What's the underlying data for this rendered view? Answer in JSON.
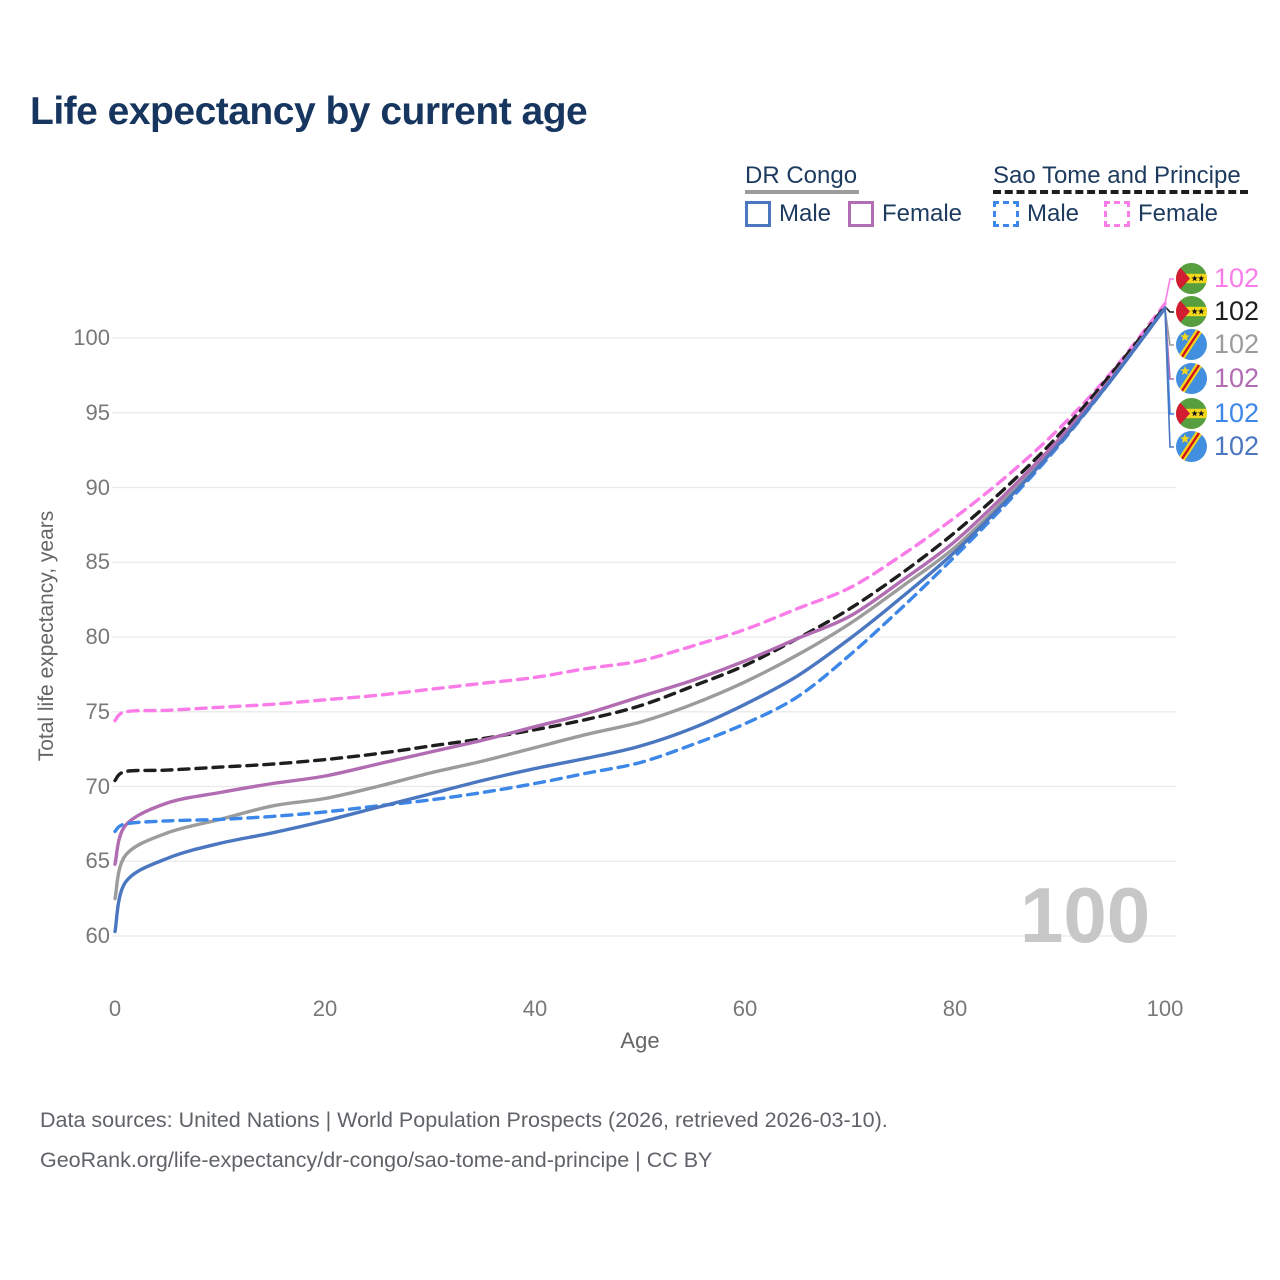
{
  "title": "Life expectancy by current age",
  "watermark": "100",
  "colors": {
    "title_text": "#17365f",
    "legend_text": "#1d3a5f",
    "axis_text": "#787878",
    "grid": "#e9e9e9",
    "watermark": "#c7c7c7",
    "footer_text": "#5f6368"
  },
  "legend": {
    "groups": [
      {
        "label": "DR Congo",
        "underline_color": "#9c9c9c",
        "underline_style": "solid",
        "items": [
          {
            "label": "Male",
            "color": "#4a77c0",
            "style": "solid"
          },
          {
            "label": "Female",
            "color": "#b16cb2",
            "style": "solid"
          }
        ]
      },
      {
        "label": "Sao Tome and Principe",
        "underline_color": "#1e1e1e",
        "underline_style": "dashed",
        "items": [
          {
            "label": "Male",
            "color": "#3c87e8",
            "style": "dashed"
          },
          {
            "label": "Female",
            "color": "#f97ce8",
            "style": "dashed"
          }
        ]
      }
    ]
  },
  "chart_data": {
    "type": "line",
    "title": "Life expectancy by current age",
    "xlabel": "Age",
    "ylabel": "Total life expectancy, years",
    "xlim": [
      0,
      100
    ],
    "ylim": [
      60,
      102.5
    ],
    "x_ticks": [
      0,
      20,
      40,
      60,
      80,
      100
    ],
    "y_ticks": [
      60,
      65,
      70,
      75,
      80,
      85,
      90,
      95,
      100
    ],
    "grid": "horizontal",
    "legend_position": "top-right",
    "x": [
      0,
      1,
      5,
      10,
      15,
      20,
      25,
      30,
      35,
      40,
      45,
      50,
      55,
      60,
      65,
      70,
      75,
      80,
      85,
      90,
      95,
      100
    ],
    "series": [
      {
        "name": "Sao Tome and Principe — Female",
        "country": "Sao Tome and Principe",
        "sex": "Female",
        "color": "#f97ce8",
        "line_style": "dashed",
        "flag": "sao-tome-and-principe",
        "end_label": "102",
        "values": [
          74.4,
          75.0,
          75.1,
          75.3,
          75.5,
          75.8,
          76.1,
          76.5,
          76.9,
          77.3,
          77.9,
          78.4,
          79.4,
          80.5,
          81.9,
          83.3,
          85.5,
          88.0,
          90.8,
          94.0,
          97.8,
          102.3
        ]
      },
      {
        "name": "Sao Tome and Principe — Both sexes",
        "country": "Sao Tome and Principe",
        "sex": "Both",
        "color": "#1e1e1e",
        "line_style": "dashed",
        "flag": "sao-tome-and-principe",
        "end_label": "102",
        "values": [
          70.4,
          71.0,
          71.1,
          71.3,
          71.5,
          71.8,
          72.2,
          72.7,
          73.2,
          73.8,
          74.5,
          75.4,
          76.7,
          78.1,
          79.9,
          81.9,
          84.3,
          87.0,
          90.1,
          93.6,
          97.7,
          102.1
        ]
      },
      {
        "name": "DR Congo — Both sexes",
        "country": "DR Congo",
        "sex": "Both",
        "color": "#9c9c9c",
        "line_style": "solid",
        "flag": "dr-congo",
        "end_label": "102",
        "values": [
          62.5,
          65.4,
          66.9,
          67.8,
          68.7,
          69.2,
          70.0,
          70.9,
          71.7,
          72.6,
          73.5,
          74.3,
          75.5,
          77.0,
          78.8,
          80.9,
          83.4,
          86.0,
          89.4,
          93.2,
          97.4,
          102.0
        ]
      },
      {
        "name": "DR Congo — Female",
        "country": "DR Congo",
        "sex": "Female",
        "color": "#b16cb2",
        "line_style": "solid",
        "flag": "dr-congo",
        "end_label": "102",
        "values": [
          64.8,
          67.4,
          68.9,
          69.6,
          70.2,
          70.7,
          71.5,
          72.3,
          73.1,
          74.0,
          74.9,
          76.0,
          77.1,
          78.4,
          79.9,
          81.4,
          83.8,
          86.4,
          89.7,
          93.3,
          97.4,
          102.0
        ]
      },
      {
        "name": "Sao Tome and Principe — Male",
        "country": "Sao Tome and Principe",
        "sex": "Male",
        "color": "#3c87e8",
        "line_style": "dashed",
        "flag": "sao-tome-and-principe",
        "end_label": "102",
        "values": [
          67.0,
          67.5,
          67.7,
          67.8,
          68.0,
          68.3,
          68.7,
          69.1,
          69.6,
          70.2,
          70.9,
          71.6,
          72.8,
          74.2,
          76.0,
          78.8,
          82.0,
          85.4,
          89.0,
          92.9,
          97.3,
          102.0
        ]
      },
      {
        "name": "DR Congo — Male",
        "country": "DR Congo",
        "sex": "Male",
        "color": "#4a77c0",
        "line_style": "solid",
        "flag": "dr-congo",
        "end_label": "102",
        "values": [
          60.3,
          63.6,
          65.2,
          66.2,
          66.9,
          67.7,
          68.6,
          69.5,
          70.4,
          71.2,
          71.9,
          72.7,
          73.9,
          75.5,
          77.4,
          79.9,
          82.7,
          85.7,
          89.2,
          93.0,
          97.3,
          102.0
        ]
      }
    ]
  },
  "footer": {
    "line1": "Data sources: United Nations | World Population Prospects (2026, retrieved 2026-03-10).",
    "line2": "GeoRank.org/life-expectancy/dr-congo/sao-tome-and-principe | CC BY"
  }
}
